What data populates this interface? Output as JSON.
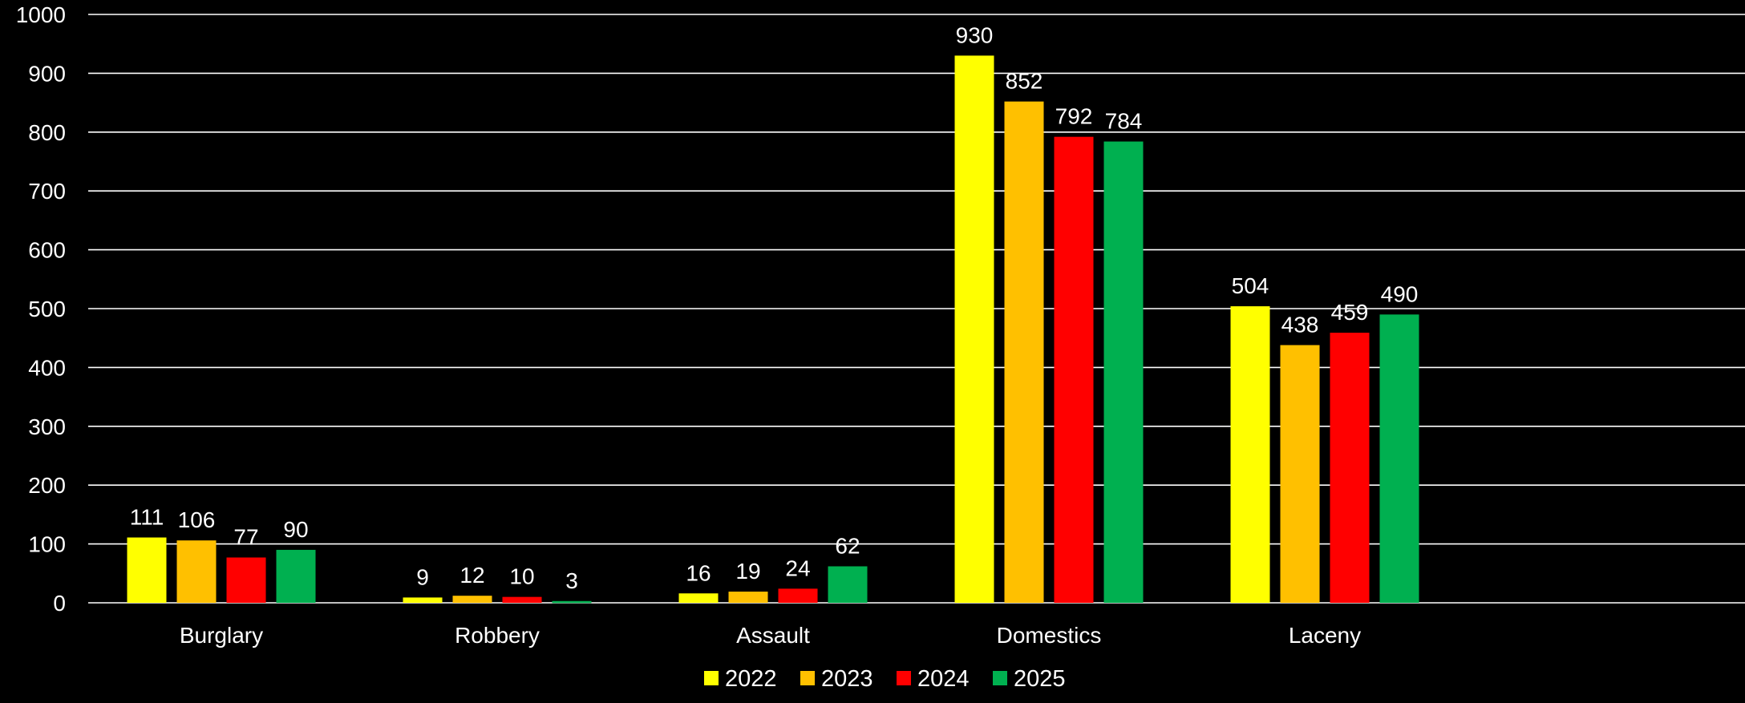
{
  "chart_data": {
    "type": "bar",
    "title": "",
    "xlabel": "",
    "ylabel": "",
    "categories": [
      "Burglary",
      "Robbery",
      "Assault",
      "Domestics",
      "Laceny"
    ],
    "series": [
      {
        "name": "2022",
        "color": "#FFFF00",
        "values": [
          111,
          9,
          16,
          930,
          504
        ]
      },
      {
        "name": "2023",
        "color": "#FFC000",
        "values": [
          106,
          12,
          19,
          852,
          438
        ]
      },
      {
        "name": "2024",
        "color": "#FF0000",
        "values": [
          77,
          10,
          24,
          792,
          459
        ]
      },
      {
        "name": "2025",
        "color": "#00B050",
        "values": [
          90,
          3,
          62,
          784,
          490
        ]
      }
    ],
    "ylim": [
      0,
      1000
    ],
    "yticks": [
      "0",
      "100",
      "200",
      "300",
      "400",
      "500",
      "600",
      "700",
      "800",
      "900",
      "1000"
    ],
    "grid": true,
    "legend_position": "bottom",
    "data_labels": true,
    "background": "#000000",
    "grid_color": "#FFFFFF",
    "text_color": "#FFFFFF"
  }
}
